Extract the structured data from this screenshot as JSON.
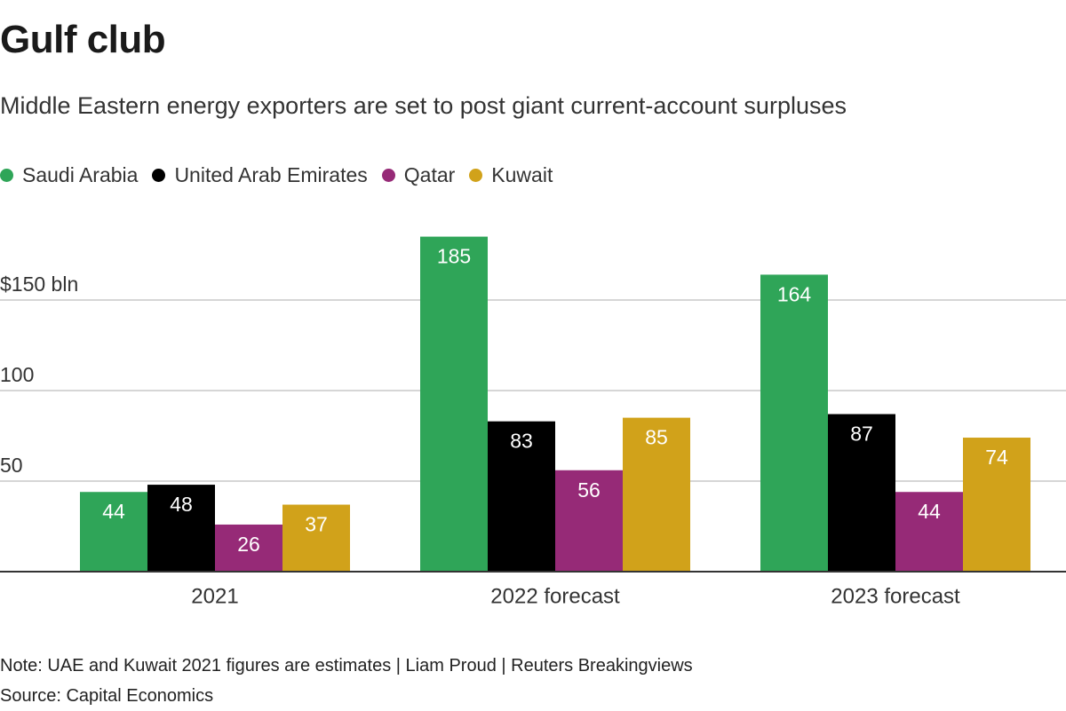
{
  "title": "Gulf club",
  "subtitle": "Middle Eastern energy exporters are set to post giant current-account surpluses",
  "note": "Note: UAE and Kuwait 2021 figures are estimates | Liam Proud | Reuters Breakingviews",
  "source": "Source: Capital Economics",
  "legend": [
    {
      "name": "Saudi Arabia",
      "color": "#2fa558"
    },
    {
      "name": "United Arab Emirates",
      "color": "#000000"
    },
    {
      "name": "Qatar",
      "color": "#962a77"
    },
    {
      "name": "Kuwait",
      "color": "#d1a21a"
    }
  ],
  "chart_data": {
    "type": "bar",
    "title": "Gulf club",
    "categories": [
      "2021",
      "2022 forecast",
      "2023 forecast"
    ],
    "series": [
      {
        "name": "Saudi Arabia",
        "values": [
          44,
          185,
          164
        ],
        "color": "#2fa558"
      },
      {
        "name": "United Arab Emirates",
        "values": [
          48,
          83,
          87
        ],
        "color": "#000000"
      },
      {
        "name": "Qatar",
        "values": [
          26,
          56,
          44
        ],
        "color": "#962a77"
      },
      {
        "name": "Kuwait",
        "values": [
          37,
          85,
          74
        ],
        "color": "#d1a21a"
      }
    ],
    "yticks": [
      {
        "value": 50,
        "label": "50"
      },
      {
        "value": 100,
        "label": "100"
      },
      {
        "value": 150,
        "label": "$150 bln"
      }
    ],
    "ylim": [
      0,
      185
    ],
    "xlabel": "",
    "ylabel": "",
    "legend_position": "top-left",
    "grid": true
  }
}
